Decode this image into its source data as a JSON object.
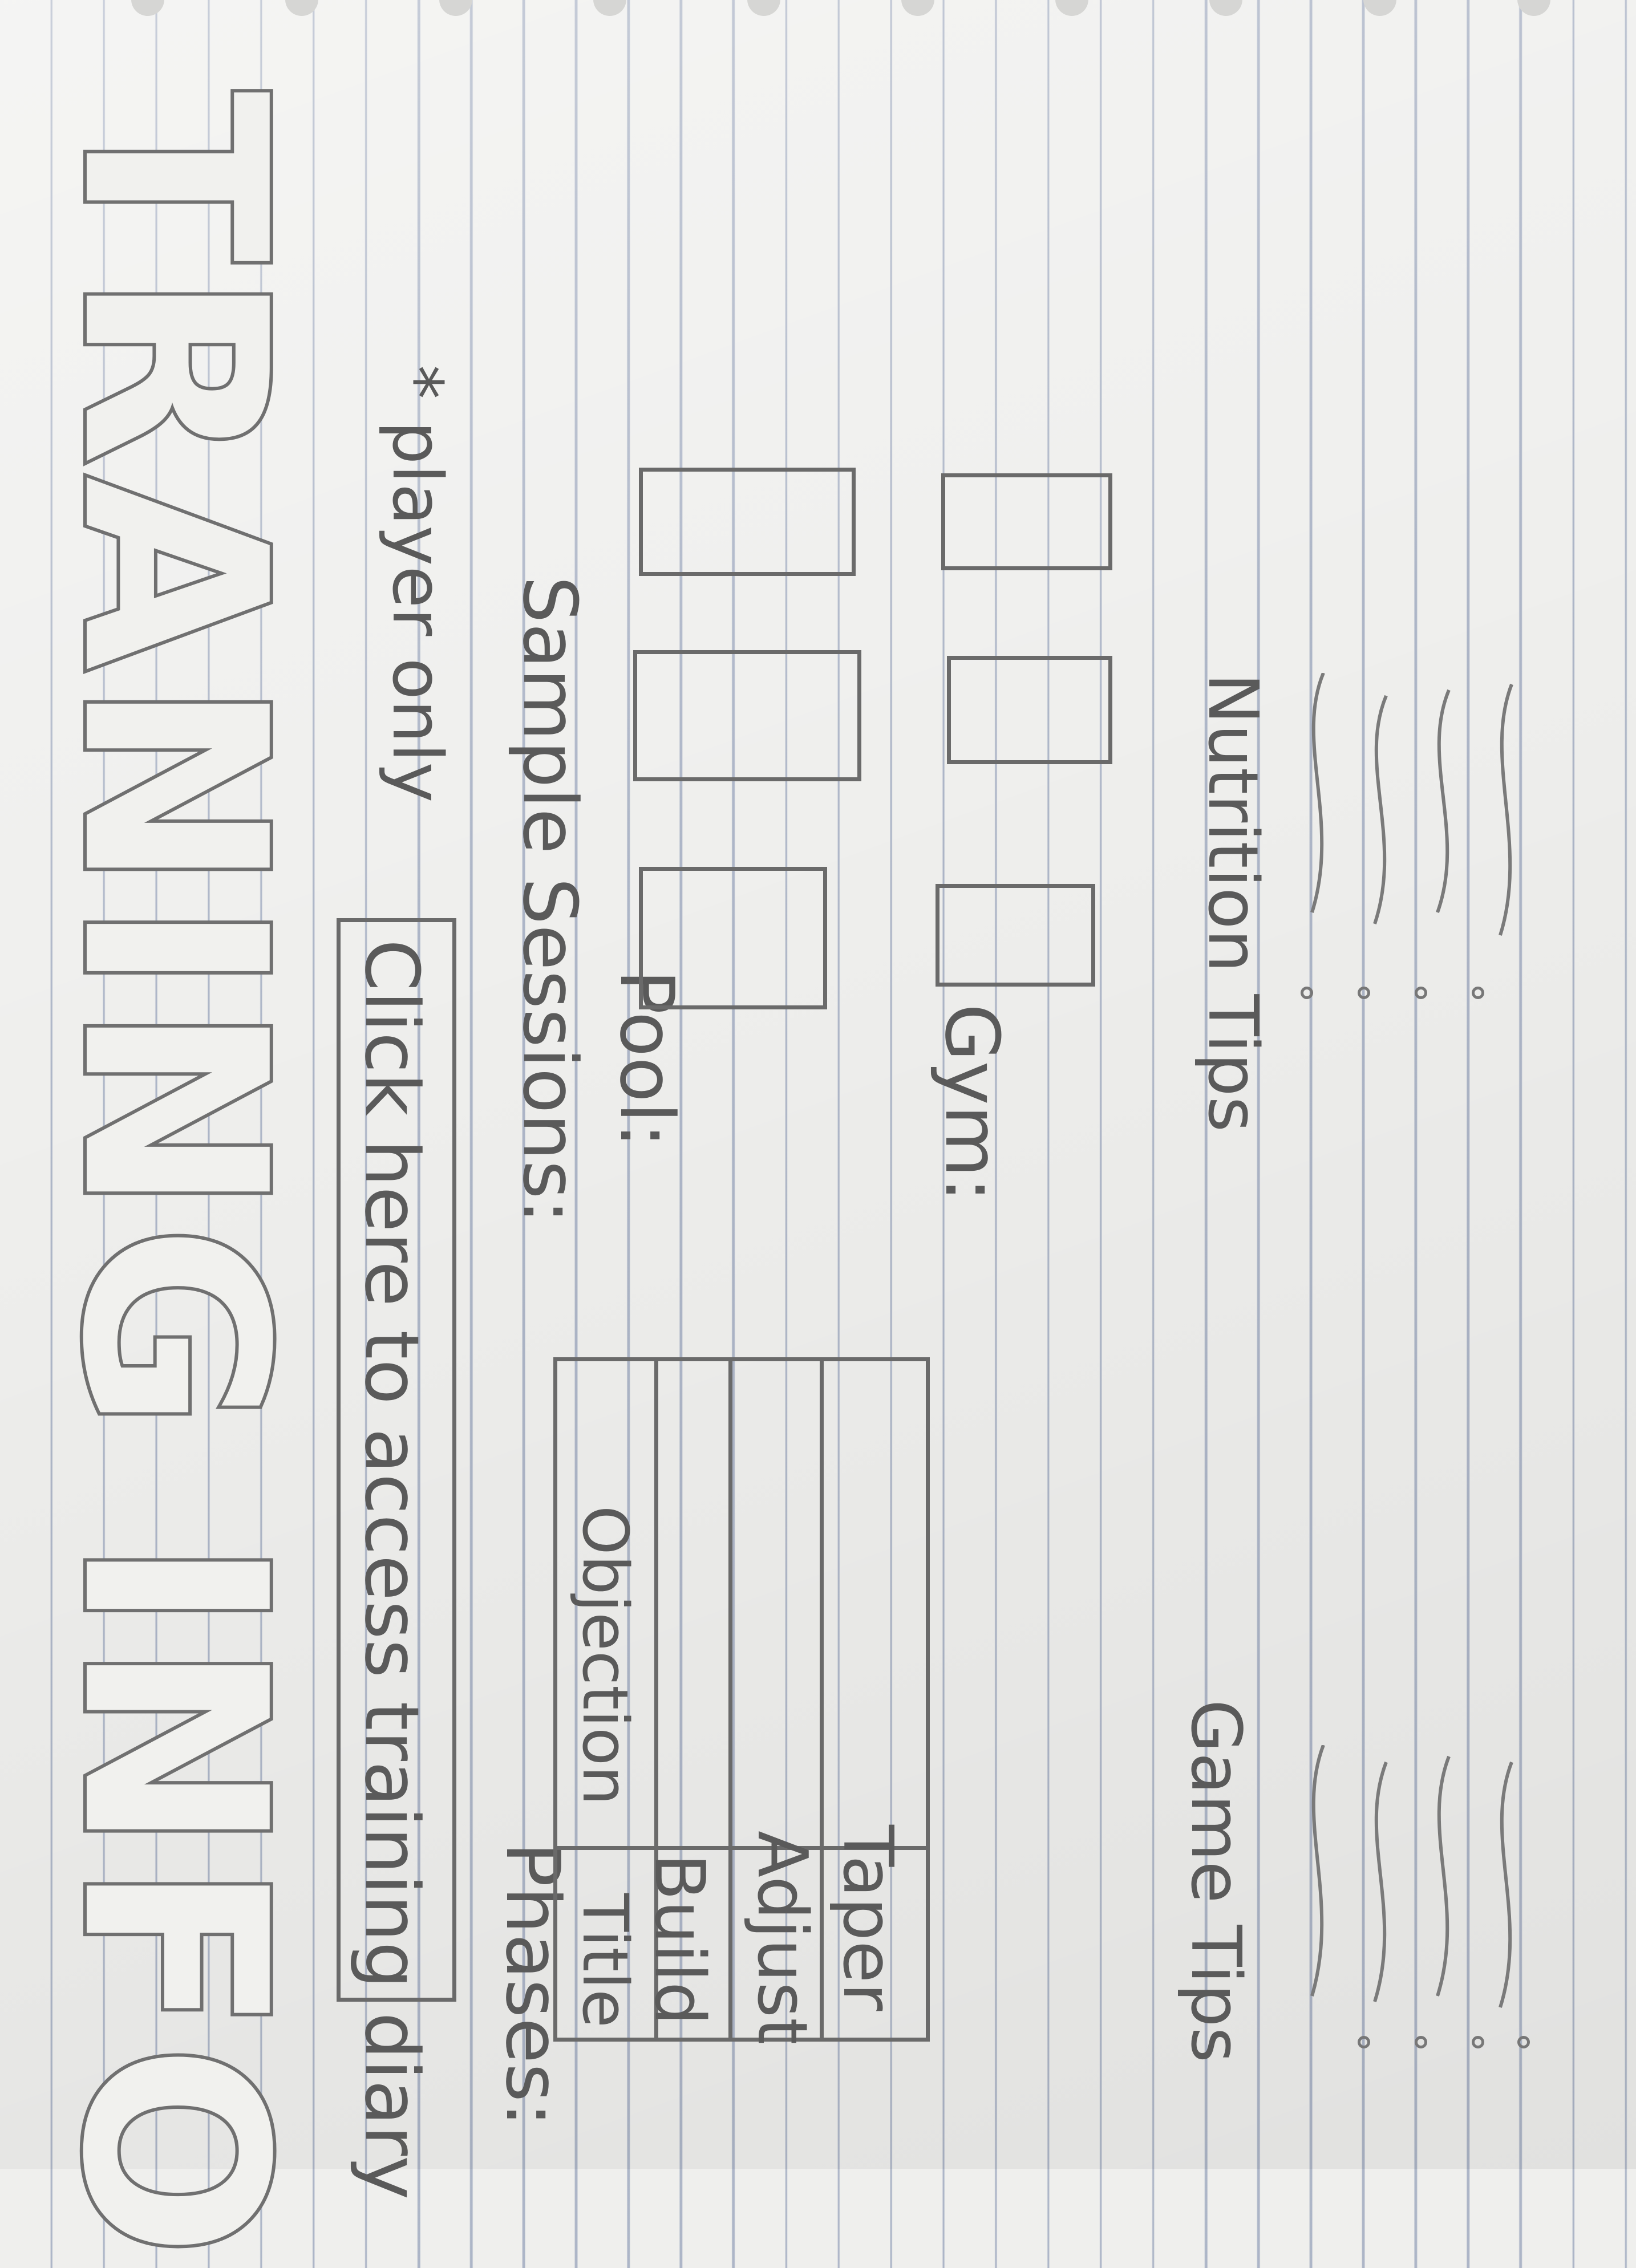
{
  "title": "TRANING INFO",
  "diary_link": {
    "label": "Click here to access training diary",
    "note": "* player only"
  },
  "phases": {
    "heading": "Phases:",
    "columns": [
      "Title",
      "Objection"
    ],
    "rows": [
      "Build",
      "Adjust",
      "Taper"
    ]
  },
  "sample_sessions": {
    "heading": "Sample Sessions:",
    "pool_label": "Pool:",
    "gym_label": "Gym:"
  },
  "game_tips": {
    "heading": "Game Tips"
  },
  "nutrition_tips": {
    "heading": "Nutrition Tips"
  },
  "colors": {
    "paper": "#efefed",
    "ruling": "#7686a8",
    "pencil": "#6a6a6a"
  }
}
